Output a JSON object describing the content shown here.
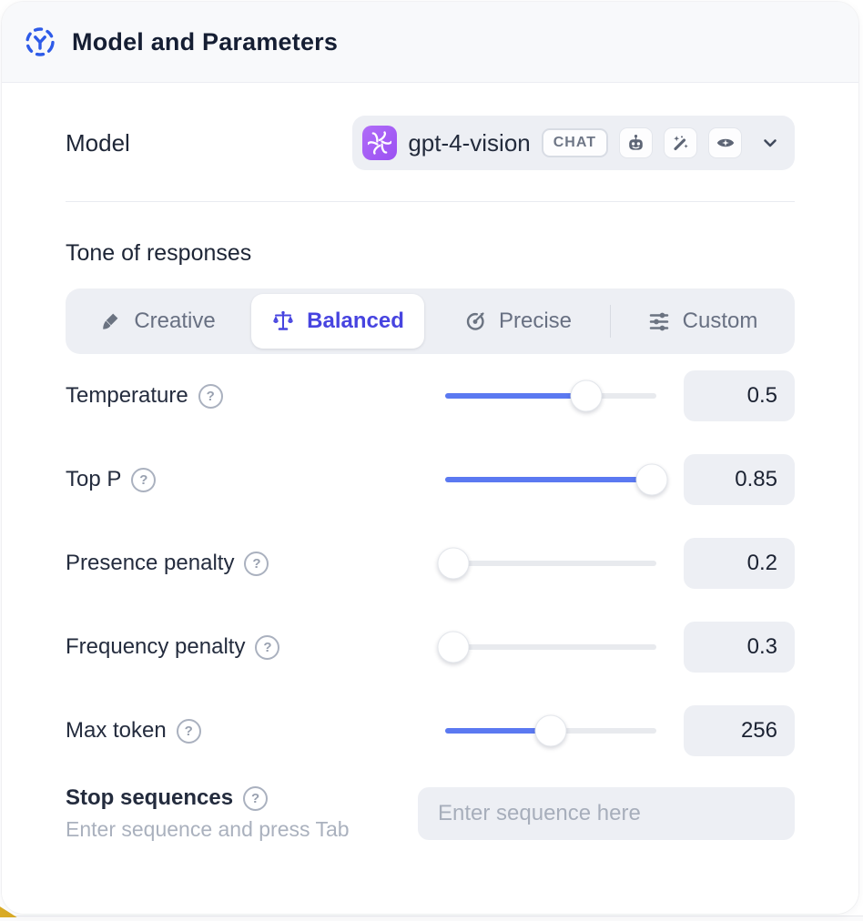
{
  "header": {
    "title": "Model and Parameters"
  },
  "model": {
    "label": "Model",
    "selected_model": "gpt-4-vision",
    "type_badge": "CHAT",
    "provider": "OpenAI",
    "capabilities": [
      "assistant",
      "magic",
      "vision"
    ]
  },
  "tone": {
    "heading": "Tone of responses",
    "options": [
      {
        "label": "Creative",
        "icon": "paintbrush-icon",
        "selected": false
      },
      {
        "label": "Balanced",
        "icon": "balance-scale-icon",
        "selected": true
      },
      {
        "label": "Precise",
        "icon": "target-icon",
        "selected": false
      },
      {
        "label": "Custom",
        "icon": "sliders-icon",
        "selected": false
      }
    ]
  },
  "parameters": [
    {
      "label": "Temperature",
      "value": "0.5",
      "slider_percent": 67
    },
    {
      "label": "Top P",
      "value": "0.85",
      "slider_percent": 98
    },
    {
      "label": "Presence penalty",
      "value": "0.2",
      "slider_percent": 4
    },
    {
      "label": "Frequency penalty",
      "value": "0.3",
      "slider_percent": 4
    },
    {
      "label": "Max token",
      "value": "256",
      "slider_percent": 50
    }
  ],
  "stop_sequences": {
    "label": "Stop sequences",
    "hint": "Enter sequence and press Tab",
    "placeholder": "Enter sequence here"
  },
  "colors": {
    "accent_indigo": "#4744e0",
    "slider_blue": "#5b79f1",
    "control_bg": "#edeff4",
    "header_bg": "#f8f9fb",
    "provider_purple": "#a259f5",
    "corner_accent_yellow": "#d9ab25"
  }
}
